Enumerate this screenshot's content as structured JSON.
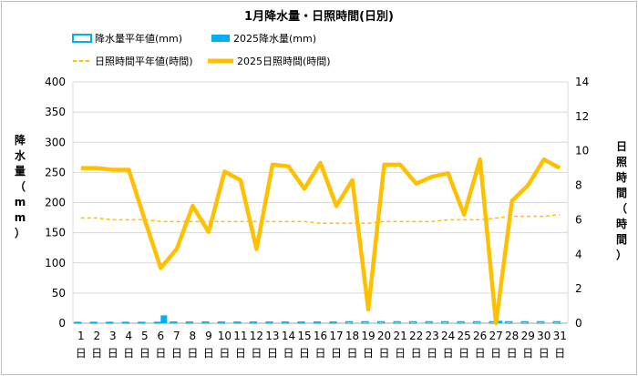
{
  "chart_data": {
    "type": "bar+line",
    "title": "1月降水量・日照時間(日別)",
    "ylabel_left": "降水量（mm）",
    "ylabel_right": "日照時間（時間）",
    "ylim_left": [
      0,
      400
    ],
    "ylim_right": [
      0,
      14
    ],
    "yticks_left": [
      "0",
      "50",
      "100",
      "150",
      "200",
      "250",
      "300",
      "350",
      "400"
    ],
    "yticks_right": [
      "0",
      "2",
      "4",
      "6",
      "8",
      "10",
      "12",
      "14"
    ],
    "x_labels": [
      "1",
      "2",
      "3",
      "4",
      "5",
      "6",
      "7",
      "8",
      "9",
      "10",
      "11",
      "12",
      "13",
      "14",
      "15",
      "16",
      "17",
      "18",
      "19",
      "20",
      "21",
      "22",
      "23",
      "24",
      "25",
      "26",
      "27",
      "28",
      "29",
      "30",
      "31"
    ],
    "x_suffix": "日",
    "legend": {
      "precip_normal": "降水量平年値(mm)",
      "precip_2025": "2025降水量(mm)",
      "sun_normal": "日照時間平年値(時間)",
      "sun_2025": "2025日照時間(時間)"
    },
    "colors": {
      "precip_normal": "#00b0f0",
      "precip_2025": "#00b0f0",
      "sun_normal": "#ffc000",
      "sun_2025": "#ffc000",
      "grid": "#d9d9d9"
    },
    "series": [
      {
        "name": "降水量平年値(mm)",
        "axis": "left",
        "type": "bar",
        "values": [
          1.5,
          1.5,
          1.5,
          1.5,
          1.5,
          1.5,
          2,
          2,
          2,
          2,
          2,
          2,
          2,
          2,
          2,
          2,
          2,
          2.5,
          2.5,
          2.5,
          2.5,
          2.5,
          2.5,
          2.5,
          2.5,
          2.5,
          2.5,
          2.5,
          2.5,
          2.5,
          2.5
        ]
      },
      {
        "name": "2025降水量(mm)",
        "axis": "left",
        "type": "bar",
        "values": [
          0,
          0,
          0,
          0,
          0,
          13,
          0,
          0,
          0,
          0,
          0,
          0,
          0,
          0,
          0,
          0,
          0,
          0,
          0,
          0,
          0,
          0,
          0,
          0,
          0,
          0,
          4,
          0,
          0,
          0,
          0
        ]
      },
      {
        "name": "日照時間平年値(時間)",
        "axis": "right",
        "type": "line",
        "values": [
          6.1,
          6.1,
          6.0,
          6.0,
          6.0,
          5.9,
          5.9,
          5.9,
          5.9,
          5.9,
          5.9,
          5.9,
          5.9,
          5.9,
          5.9,
          5.8,
          5.8,
          5.8,
          5.8,
          5.9,
          5.9,
          5.9,
          5.9,
          6.0,
          6.0,
          6.0,
          6.1,
          6.2,
          6.2,
          6.2,
          6.3
        ]
      },
      {
        "name": "2025日照時間(時間)",
        "axis": "right",
        "type": "line",
        "values": [
          9.0,
          9.0,
          8.9,
          8.9,
          6.0,
          3.2,
          4.3,
          6.8,
          5.3,
          8.8,
          8.3,
          4.3,
          9.2,
          9.1,
          7.8,
          9.3,
          6.8,
          8.3,
          0.8,
          9.2,
          9.2,
          8.1,
          8.5,
          8.7,
          6.3,
          9.5,
          0.0,
          7.1,
          8.0,
          9.5,
          9.0
        ]
      }
    ]
  }
}
